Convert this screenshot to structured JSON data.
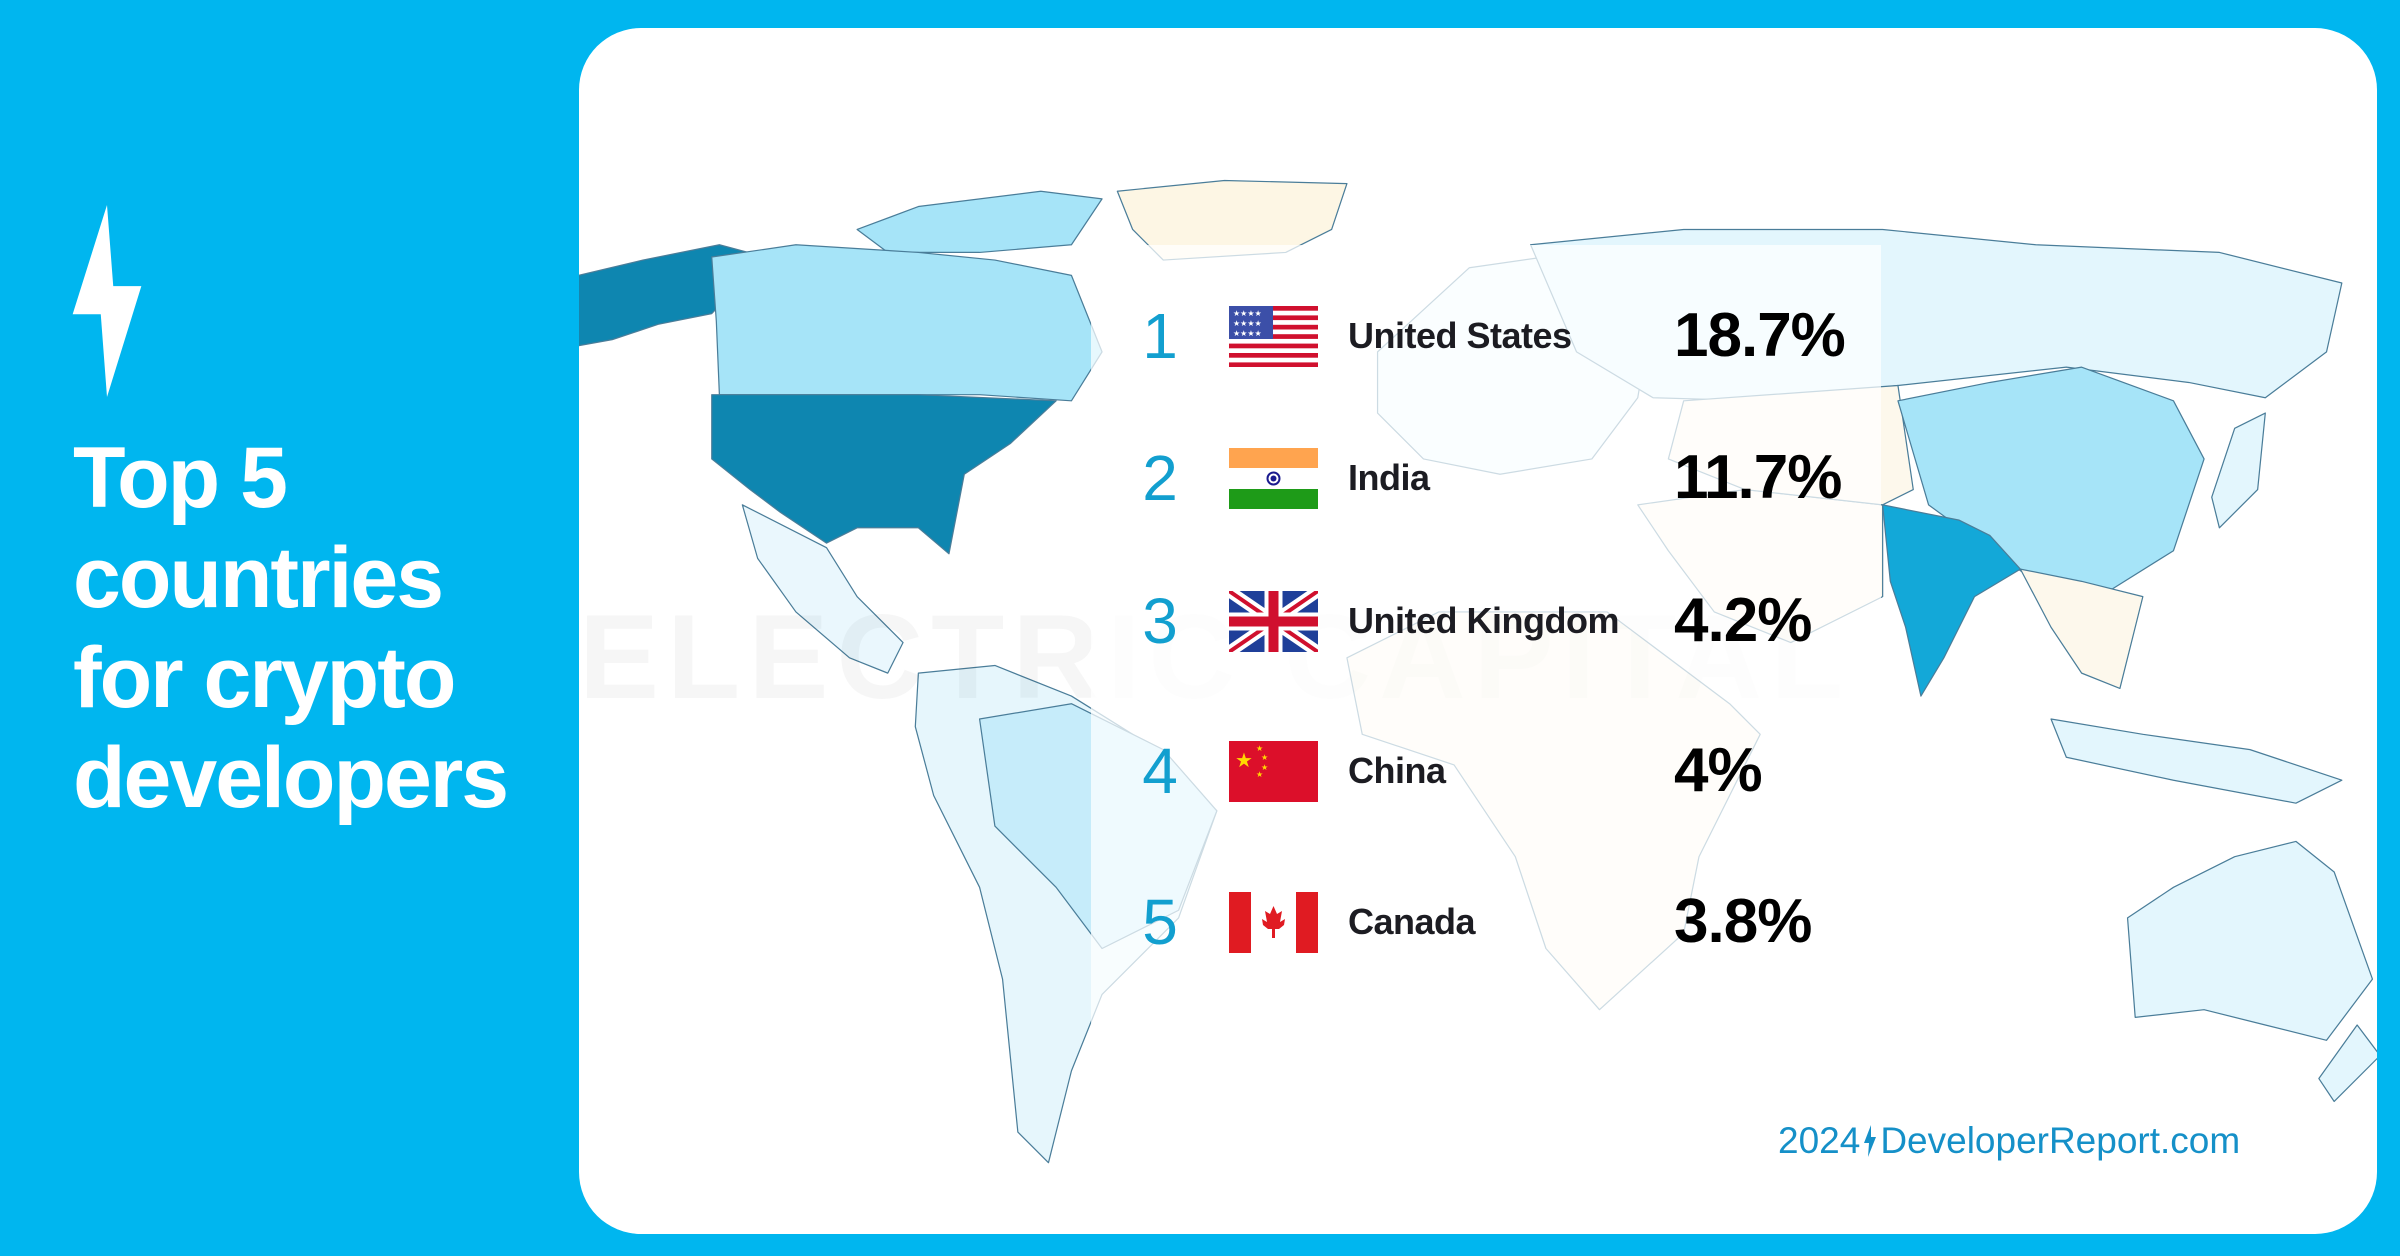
{
  "brand_icon": "lightning-bolt-icon",
  "title_lines": [
    "Top 5",
    "countries",
    "for crypto",
    "developers"
  ],
  "watermark": "ELECTRIC CAPITAL",
  "colors": {
    "background": "#00b6ef",
    "rank": "#129fcf",
    "us_map": "#0e86b0",
    "india_map": "#13a8d8",
    "light_map": "#a6e4f8"
  },
  "rows": [
    {
      "rank": "1",
      "flag": "us-flag-icon",
      "country": "United States",
      "percent": "18.7%"
    },
    {
      "rank": "2",
      "flag": "india-flag-icon",
      "country": "India",
      "percent": "11.7%"
    },
    {
      "rank": "3",
      "flag": "uk-flag-icon",
      "country": "United Kingdom",
      "percent": "4.2%"
    },
    {
      "rank": "4",
      "flag": "china-flag-icon",
      "country": "China",
      "percent": "4%"
    },
    {
      "rank": "5",
      "flag": "canada-flag-icon",
      "country": "Canada",
      "percent": "3.8%"
    }
  ],
  "footer": {
    "year": "2024",
    "site": "DeveloperReport.com"
  }
}
